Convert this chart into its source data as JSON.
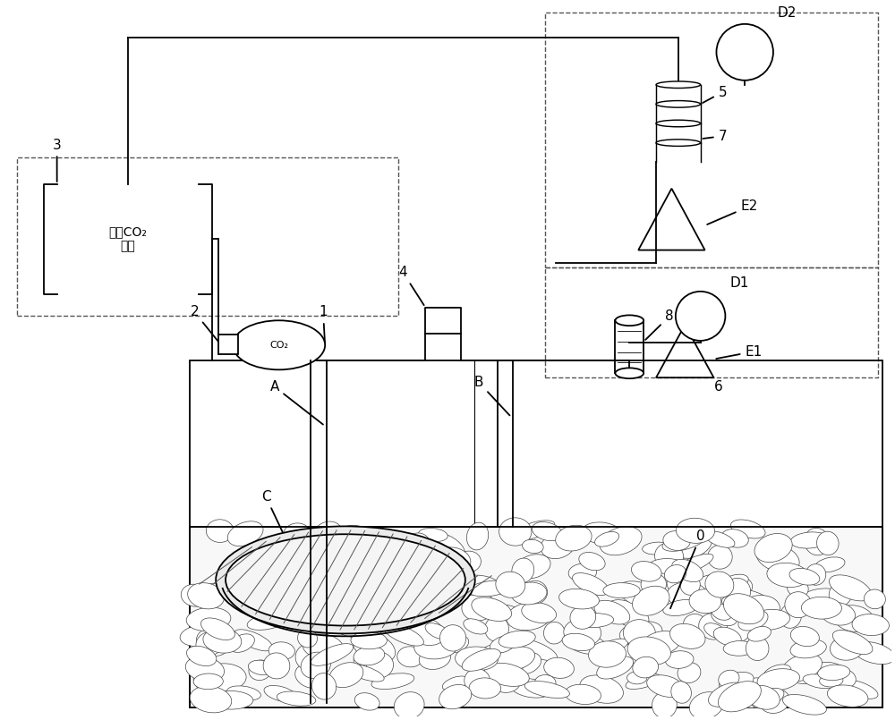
{
  "bg_color": "#ffffff",
  "lc": "#000000",
  "lw": 1.3,
  "fig_w": 10.0,
  "fig_h": 8.05,
  "co2_text": "外部CO₂\n气源",
  "co2_inner_text": "CO₂",
  "labels": [
    "3",
    "2",
    "1",
    "4",
    "5",
    "7",
    "D2",
    "E2",
    "D1",
    "8",
    "E1",
    "6",
    "A",
    "B",
    "C",
    "0"
  ]
}
